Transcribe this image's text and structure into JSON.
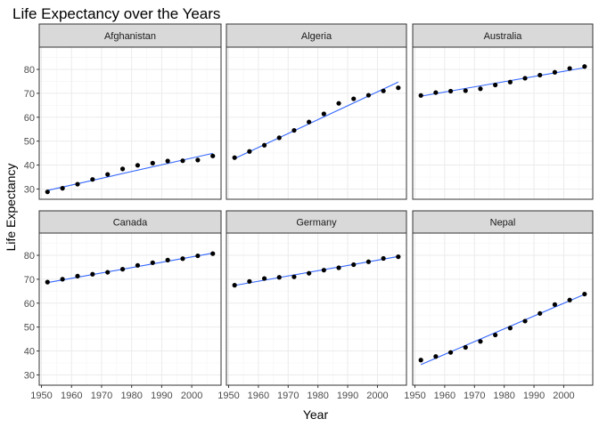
{
  "chart_data": {
    "type": "scatter",
    "title": "Life Expectancy over the Years",
    "xlabel": "Year",
    "ylabel": "Life Expectancy",
    "xlim": [
      1949.25,
      2009.75
    ],
    "ylim": [
      25.7,
      89.3
    ],
    "x_ticks": [
      1950,
      1960,
      1970,
      1980,
      1990,
      2000
    ],
    "y_ticks": [
      30,
      40,
      50,
      60,
      70,
      80
    ],
    "grid": true,
    "layout": "facet 2x3",
    "colors": {
      "points": "#000000",
      "fit_line": "#3366ff",
      "panel_background": "#ffffff",
      "panel_border": "#333333",
      "strip_fill": "#d9d9d9",
      "grid_major": "#ebebeb",
      "grid_minor": "#f5f5f5"
    },
    "x": [
      1952,
      1957,
      1962,
      1967,
      1972,
      1977,
      1982,
      1987,
      1992,
      1997,
      2002,
      2007
    ],
    "panels": [
      {
        "name": "Afghanistan",
        "values": [
          28.8,
          30.3,
          32.0,
          34.0,
          36.1,
          38.4,
          39.9,
          40.8,
          41.7,
          41.8,
          42.1,
          43.8
        ],
        "trend": [
          29.4,
          44.9
        ]
      },
      {
        "name": "Algeria",
        "values": [
          43.1,
          45.7,
          48.3,
          51.4,
          54.5,
          58.0,
          61.4,
          65.8,
          67.7,
          69.2,
          71.0,
          72.3
        ],
        "trend": [
          42.7,
          74.7
        ]
      },
      {
        "name": "Australia",
        "values": [
          69.1,
          70.3,
          70.9,
          71.1,
          71.9,
          73.5,
          74.7,
          76.3,
          77.6,
          78.8,
          80.4,
          81.2
        ],
        "trend": [
          68.8,
          80.7
        ]
      },
      {
        "name": "Canada",
        "values": [
          68.8,
          70.0,
          71.3,
          72.1,
          72.9,
          74.2,
          75.8,
          76.9,
          78.0,
          78.6,
          79.8,
          80.7
        ],
        "trend": [
          68.6,
          80.9
        ]
      },
      {
        "name": "Germany",
        "values": [
          67.5,
          69.1,
          70.3,
          70.8,
          71.0,
          72.5,
          73.8,
          74.8,
          76.1,
          77.3,
          78.7,
          79.4
        ],
        "trend": [
          67.4,
          79.5
        ]
      },
      {
        "name": "Nepal",
        "values": [
          36.2,
          37.7,
          39.4,
          41.5,
          44.0,
          46.7,
          49.6,
          52.5,
          55.7,
          59.4,
          61.3,
          63.8
        ],
        "trend": [
          34.3,
          63.7
        ]
      }
    ]
  }
}
